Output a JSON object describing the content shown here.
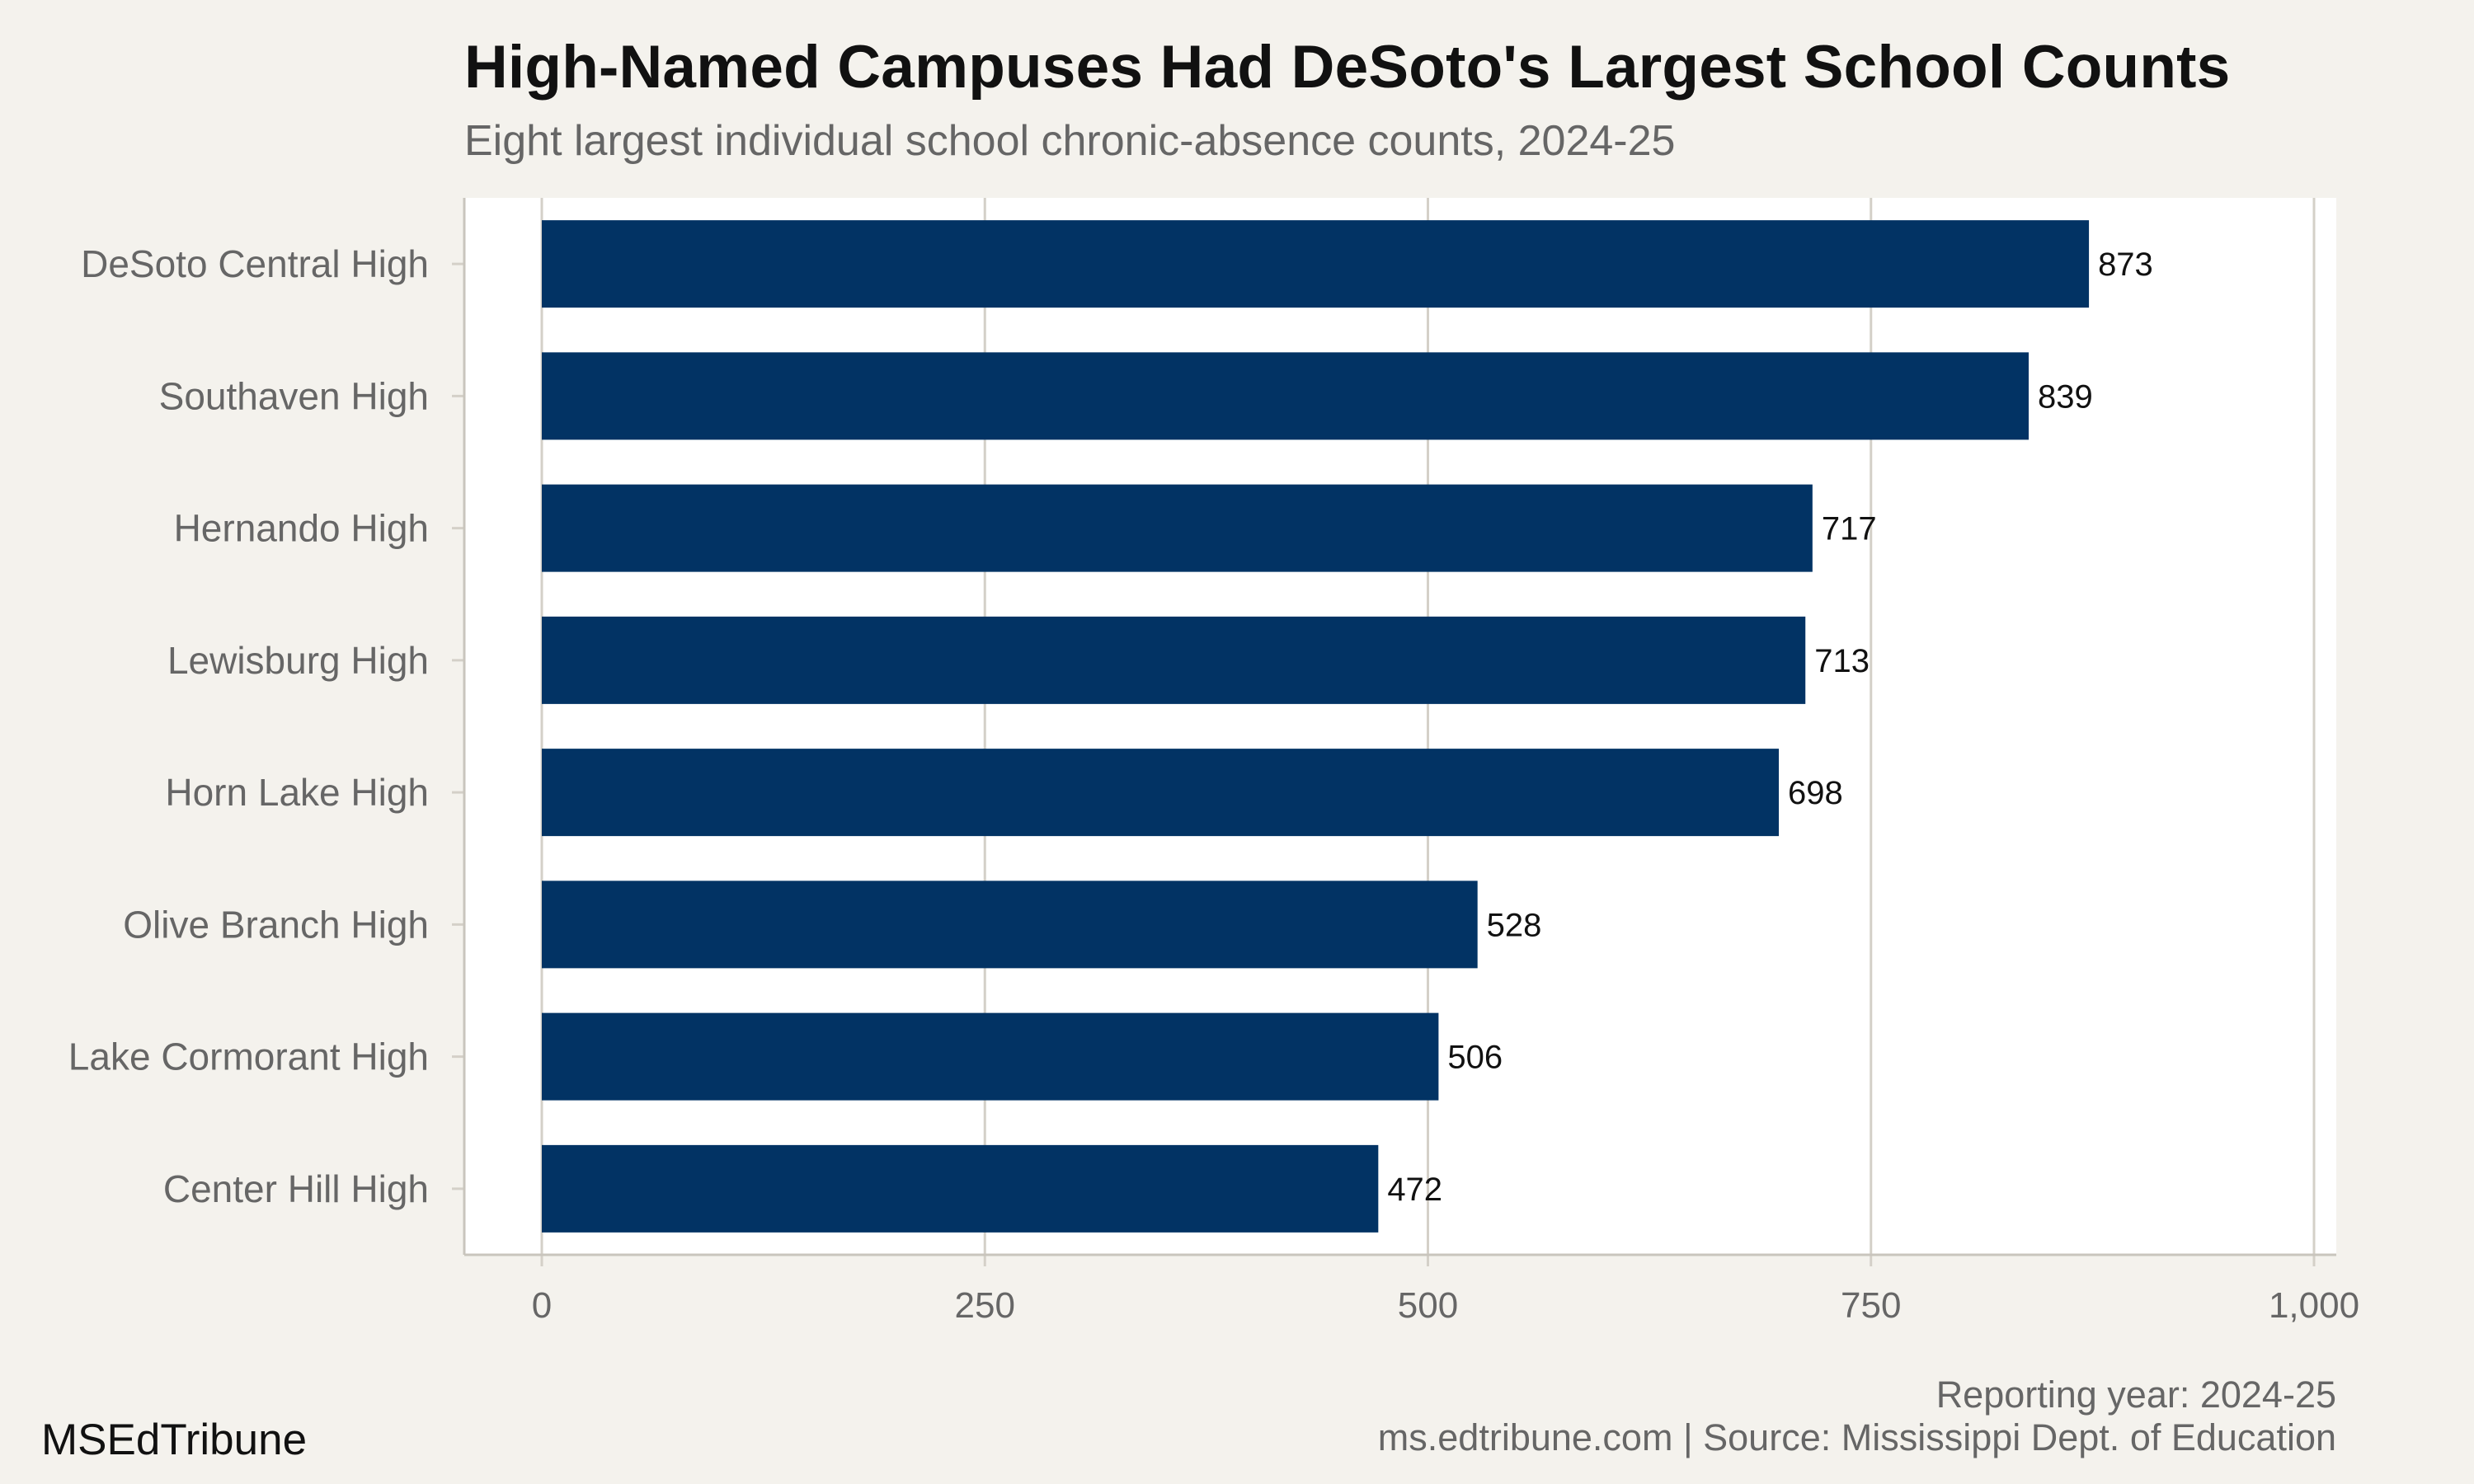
{
  "header": {
    "title": "High-Named Campuses Had DeSoto's Largest School Counts",
    "subtitle": "Eight largest individual school chronic-absence counts, 2024-25"
  },
  "footer": {
    "note_year": "Reporting year: 2024-25",
    "note_source": "ms.edtribune.com | Source: Mississippi Dept. of Education",
    "brand": "MSEdTribune"
  },
  "colors": {
    "background": "#f4f2ed",
    "panel": "#ffffff",
    "bar": "#023364",
    "grid": "#d4d0c8",
    "axis_text": "#666666"
  },
  "chart_data": {
    "type": "bar",
    "orientation": "horizontal",
    "categories": [
      "DeSoto Central High",
      "Southaven High",
      "Hernando High",
      "Lewisburg High",
      "Horn Lake High",
      "Olive Branch High",
      "Lake Cormorant High",
      "Center Hill High"
    ],
    "values": [
      873,
      839,
      717,
      713,
      698,
      528,
      506,
      472
    ],
    "value_labels": [
      "873",
      "839",
      "717",
      "713",
      "698",
      "528",
      "506",
      "472"
    ],
    "xlim": [
      0,
      1000
    ],
    "xticks": [
      0,
      250,
      500,
      750,
      1000
    ],
    "xtick_labels": [
      "0",
      "250",
      "500",
      "750",
      "1,000"
    ],
    "grid": true
  }
}
